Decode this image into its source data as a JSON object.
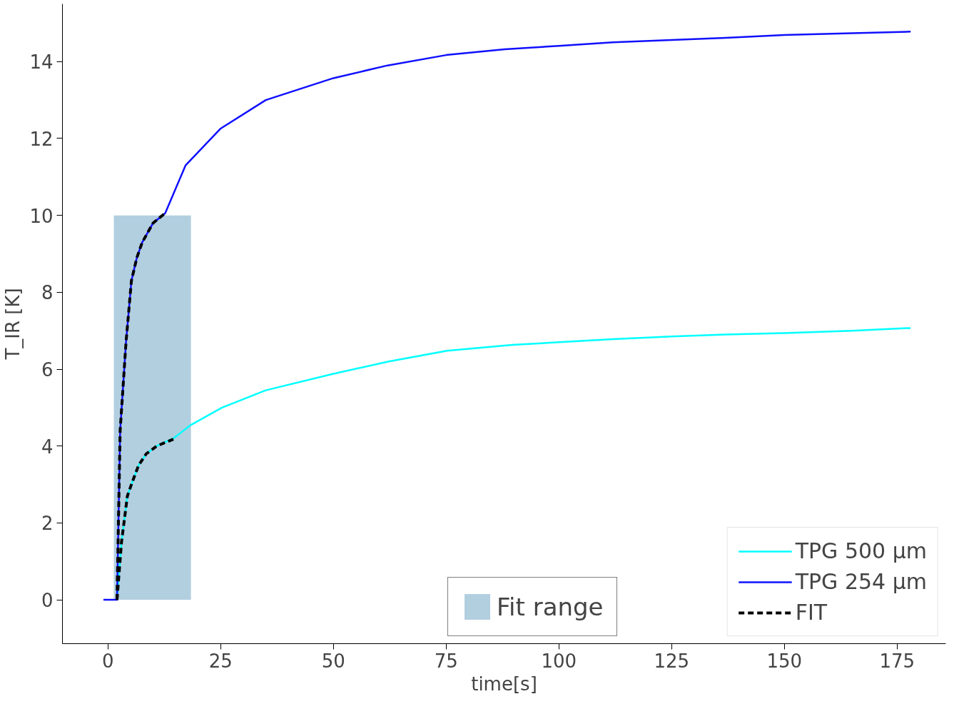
{
  "chart_data": {
    "type": "line",
    "xlabel": "time[s]",
    "ylabel": "T_IR [K]",
    "xlim": [
      -10.1,
      185.8
    ],
    "ylim": [
      -1.14,
      15.5
    ],
    "xticks": [
      0,
      25,
      50,
      75,
      100,
      125,
      150,
      175
    ],
    "yticks": [
      0,
      2,
      4,
      6,
      8,
      10,
      12,
      14
    ],
    "grid": false,
    "legend": "bottom right",
    "series": [
      {
        "name": "Fit range",
        "type": "area",
        "color": "#b2cfe0",
        "x": [
          1.3,
          18.4
        ],
        "values": [
          10,
          10
        ]
      },
      {
        "name": "TPG 500 μm",
        "color": "#00ffff",
        "x": [
          2,
          3,
          4.3,
          5.5,
          6.8,
          8.5,
          10.8,
          14.5,
          18.4,
          25.3,
          35,
          50,
          62.3,
          75.2,
          89.7,
          100,
          112,
          125,
          137,
          150,
          165,
          178
        ],
        "values": [
          0,
          1.5,
          2.7,
          3.1,
          3.5,
          3.8,
          4.0,
          4.2,
          4.55,
          5.0,
          5.45,
          5.88,
          6.2,
          6.48,
          6.63,
          6.7,
          6.78,
          6.85,
          6.9,
          6.94,
          7.0,
          7.07
        ]
      },
      {
        "name": "TPG 254 μm",
        "color": "#1010ff",
        "x": [
          -1,
          0,
          1,
          2,
          2.7,
          4,
          5.2,
          6.4,
          7.6,
          10,
          12.7,
          17.2,
          25,
          35,
          50,
          62,
          75,
          88,
          100,
          112,
          125,
          137,
          150,
          165,
          178
        ],
        "values": [
          0,
          0,
          0,
          0,
          4.4,
          6.7,
          8.3,
          8.9,
          9.3,
          9.8,
          10.06,
          11.3,
          12.26,
          13.0,
          13.57,
          13.9,
          14.17,
          14.32,
          14.41,
          14.5,
          14.56,
          14.62,
          14.69,
          14.74,
          14.78
        ]
      },
      {
        "name": "FIT",
        "color": "#000000",
        "line_style": "dashed",
        "x": [
          2,
          2.7,
          4,
          5.2,
          6.4,
          7.6,
          10,
          12.7
        ],
        "values": [
          0,
          4.4,
          6.7,
          8.3,
          8.9,
          9.3,
          9.8,
          10.06
        ]
      },
      {
        "color": "#000000",
        "line_style": "dashed",
        "x": [
          2,
          3,
          4.3,
          5.5,
          6.8,
          8.5,
          10.8,
          14.5
        ],
        "values": [
          0,
          1.5,
          2.7,
          3.1,
          3.5,
          3.8,
          4.0,
          4.18
        ]
      }
    ]
  }
}
